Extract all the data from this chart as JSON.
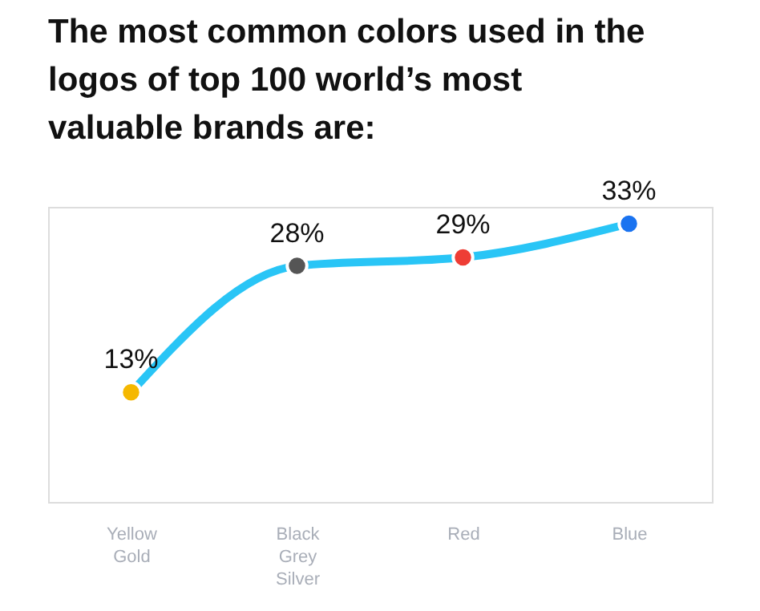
{
  "chart_data": {
    "type": "line",
    "title": "The most common colors used in the logos of top 100 world’s most valuable brands are:",
    "categories": [
      "Yellow\nGold",
      "Black\nGrey\nSilver",
      "Red",
      "Blue"
    ],
    "values": [
      13,
      28,
      29,
      33
    ],
    "value_labels": [
      "13%",
      "28%",
      "29%",
      "33%"
    ],
    "color": "#29c5f6",
    "colors": [
      "#f5b800",
      "#555555",
      "#ee3d35",
      "#1a73f0"
    ],
    "marker": "circle",
    "line_style": "solid",
    "tick_labels": "x",
    "grid": false
  }
}
